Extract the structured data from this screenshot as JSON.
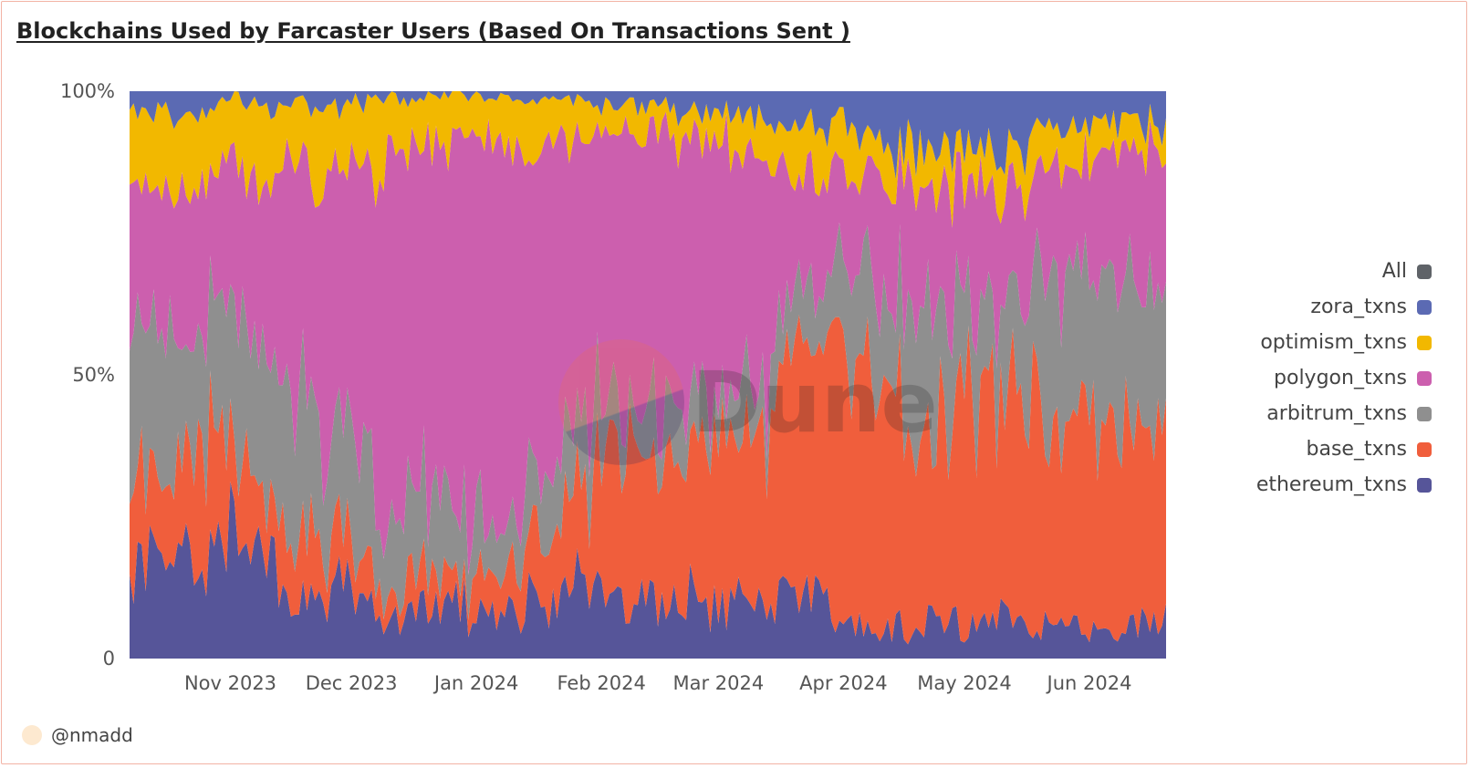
{
  "title": "Blockchains Used by Farcaster Users (Based On Transactions Sent )",
  "author": "@nmadd",
  "watermark": "Dune",
  "legend": [
    {
      "label": "All",
      "color": "#5f6368"
    },
    {
      "label": "zora_txns",
      "color": "#5b6ab3"
    },
    {
      "label": "optimism_txns",
      "color": "#f2b800"
    },
    {
      "label": "polygon_txns",
      "color": "#cc5fae"
    },
    {
      "label": "arbitrum_txns",
      "color": "#8f8f8f"
    },
    {
      "label": "base_txns",
      "color": "#f05e3c"
    },
    {
      "label": "ethereum_txns",
      "color": "#565599"
    }
  ],
  "chart_data": {
    "type": "area",
    "stacked": true,
    "normalized": true,
    "y_ticks": [
      "0",
      "50%",
      "100%"
    ],
    "ylim": [
      0,
      100
    ],
    "x_tick_labels": [
      "Nov 2023",
      "Dec 2023",
      "Jan 2024",
      "Feb 2024",
      "Mar 2024",
      "Apr 2024",
      "May 2024",
      "Jun 2024"
    ],
    "x_tick_index": [
      25,
      55,
      86,
      117,
      146,
      177,
      207,
      238
    ],
    "n_points": 258,
    "series": [
      {
        "name": "ethereum_txns",
        "color": "#565599",
        "anchors": [
          [
            0,
            15
          ],
          [
            12,
            18
          ],
          [
            22,
            20
          ],
          [
            26,
            27
          ],
          [
            32,
            17
          ],
          [
            40,
            11
          ],
          [
            48,
            9
          ],
          [
            54,
            13
          ],
          [
            62,
            9
          ],
          [
            70,
            8
          ],
          [
            80,
            9
          ],
          [
            88,
            7
          ],
          [
            94,
            10
          ],
          [
            104,
            10
          ],
          [
            114,
            12
          ],
          [
            124,
            10
          ],
          [
            134,
            10
          ],
          [
            146,
            9
          ],
          [
            158,
            10
          ],
          [
            168,
            12
          ],
          [
            178,
            6
          ],
          [
            186,
            5
          ],
          [
            196,
            6
          ],
          [
            206,
            6
          ],
          [
            216,
            8
          ],
          [
            224,
            6
          ],
          [
            232,
            5
          ],
          [
            244,
            5
          ],
          [
            257,
            7
          ]
        ]
      },
      {
        "name": "base_txns",
        "color": "#f05e3c",
        "anchors": [
          [
            0,
            17
          ],
          [
            12,
            16
          ],
          [
            22,
            21
          ],
          [
            26,
            16
          ],
          [
            32,
            11
          ],
          [
            40,
            12
          ],
          [
            48,
            8
          ],
          [
            54,
            10
          ],
          [
            62,
            5
          ],
          [
            70,
            6
          ],
          [
            80,
            5
          ],
          [
            88,
            7
          ],
          [
            94,
            10
          ],
          [
            104,
            14
          ],
          [
            114,
            18
          ],
          [
            124,
            28
          ],
          [
            134,
            22
          ],
          [
            146,
            26
          ],
          [
            158,
            31
          ],
          [
            168,
            45
          ],
          [
            178,
            47
          ],
          [
            186,
            45
          ],
          [
            196,
            34
          ],
          [
            206,
            39
          ],
          [
            216,
            44
          ],
          [
            224,
            41
          ],
          [
            232,
            34
          ],
          [
            244,
            38
          ],
          [
            257,
            35
          ]
        ]
      },
      {
        "name": "arbitrum_txns",
        "color": "#8f8f8f",
        "anchors": [
          [
            0,
            28
          ],
          [
            12,
            23
          ],
          [
            22,
            22
          ],
          [
            26,
            20
          ],
          [
            32,
            26
          ],
          [
            40,
            27
          ],
          [
            48,
            20
          ],
          [
            54,
            18
          ],
          [
            62,
            16
          ],
          [
            70,
            14
          ],
          [
            80,
            13
          ],
          [
            88,
            10
          ],
          [
            94,
            9
          ],
          [
            104,
            12
          ],
          [
            114,
            9
          ],
          [
            124,
            9
          ],
          [
            134,
            8
          ],
          [
            146,
            7
          ],
          [
            158,
            9
          ],
          [
            168,
            10
          ],
          [
            178,
            18
          ],
          [
            186,
            16
          ],
          [
            196,
            20
          ],
          [
            206,
            16
          ],
          [
            216,
            14
          ],
          [
            224,
            20
          ],
          [
            232,
            28
          ],
          [
            244,
            25
          ],
          [
            257,
            21
          ]
        ]
      },
      {
        "name": "polygon_txns",
        "color": "#cc5fae",
        "anchors": [
          [
            0,
            24
          ],
          [
            12,
            24
          ],
          [
            22,
            25
          ],
          [
            26,
            25
          ],
          [
            32,
            26
          ],
          [
            40,
            37
          ],
          [
            48,
            46
          ],
          [
            54,
            53
          ],
          [
            62,
            62
          ],
          [
            70,
            63
          ],
          [
            80,
            68
          ],
          [
            88,
            70
          ],
          [
            94,
            66
          ],
          [
            104,
            58
          ],
          [
            114,
            52
          ],
          [
            124,
            46
          ],
          [
            134,
            52
          ],
          [
            146,
            49
          ],
          [
            158,
            36
          ],
          [
            168,
            18
          ],
          [
            178,
            16
          ],
          [
            186,
            23
          ],
          [
            196,
            18
          ],
          [
            206,
            21
          ],
          [
            216,
            20
          ],
          [
            224,
            20
          ],
          [
            232,
            21
          ],
          [
            244,
            22
          ],
          [
            257,
            27
          ]
        ]
      },
      {
        "name": "optimism_txns",
        "color": "#f2b800",
        "anchors": [
          [
            0,
            13
          ],
          [
            12,
            14
          ],
          [
            22,
            11
          ],
          [
            26,
            12
          ],
          [
            32,
            16
          ],
          [
            40,
            10
          ],
          [
            48,
            14
          ],
          [
            54,
            12
          ],
          [
            62,
            14
          ],
          [
            70,
            8
          ],
          [
            80,
            7
          ],
          [
            88,
            7
          ],
          [
            94,
            7
          ],
          [
            104,
            9
          ],
          [
            114,
            6
          ],
          [
            124,
            5
          ],
          [
            134,
            5
          ],
          [
            146,
            5
          ],
          [
            158,
            8
          ],
          [
            168,
            9
          ],
          [
            178,
            9
          ],
          [
            186,
            5
          ],
          [
            196,
            7
          ],
          [
            206,
            6
          ],
          [
            216,
            7
          ],
          [
            224,
            6
          ],
          [
            232,
            6
          ],
          [
            244,
            5
          ],
          [
            257,
            5
          ]
        ]
      },
      {
        "name": "zora_txns",
        "color": "#5b6ab3",
        "anchors": [
          [
            0,
            3
          ],
          [
            12,
            5
          ],
          [
            22,
            2
          ],
          [
            26,
            0
          ],
          [
            32,
            3
          ],
          [
            40,
            2
          ],
          [
            48,
            3
          ],
          [
            54,
            2
          ],
          [
            62,
            2
          ],
          [
            70,
            1
          ],
          [
            80,
            1
          ],
          [
            88,
            1
          ],
          [
            94,
            1
          ],
          [
            104,
            1
          ],
          [
            114,
            2
          ],
          [
            124,
            3
          ],
          [
            134,
            3
          ],
          [
            146,
            4
          ],
          [
            158,
            5
          ],
          [
            168,
            6
          ],
          [
            178,
            6
          ],
          [
            186,
            11
          ],
          [
            196,
            9
          ],
          [
            206,
            11
          ],
          [
            216,
            10
          ],
          [
            224,
            9
          ],
          [
            232,
            6
          ],
          [
            244,
            5
          ],
          [
            257,
            5
          ]
        ]
      }
    ]
  }
}
